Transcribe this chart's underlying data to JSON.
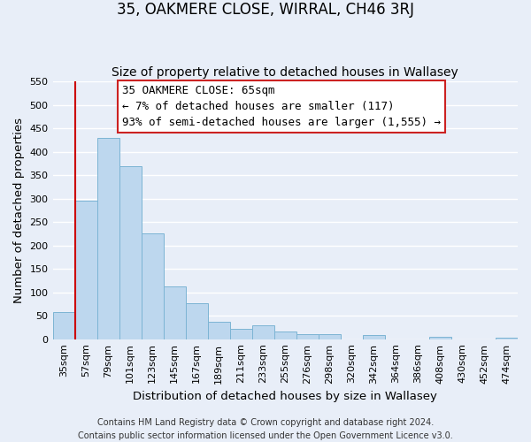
{
  "title": "35, OAKMERE CLOSE, WIRRAL, CH46 3RJ",
  "subtitle": "Size of property relative to detached houses in Wallasey",
  "xlabel": "Distribution of detached houses by size in Wallasey",
  "ylabel": "Number of detached properties",
  "bar_labels": [
    "35sqm",
    "57sqm",
    "79sqm",
    "101sqm",
    "123sqm",
    "145sqm",
    "167sqm",
    "189sqm",
    "211sqm",
    "233sqm",
    "255sqm",
    "276sqm",
    "298sqm",
    "320sqm",
    "342sqm",
    "364sqm",
    "386sqm",
    "408sqm",
    "430sqm",
    "452sqm",
    "474sqm"
  ],
  "bar_values": [
    57,
    296,
    430,
    369,
    225,
    113,
    76,
    38,
    22,
    29,
    17,
    10,
    10,
    0,
    9,
    0,
    0,
    5,
    0,
    0,
    4
  ],
  "bar_color": "#bdd7ee",
  "bar_edge_color": "#7cb4d4",
  "vline_color": "#cc0000",
  "ylim": [
    0,
    550
  ],
  "yticks": [
    0,
    50,
    100,
    150,
    200,
    250,
    300,
    350,
    400,
    450,
    500,
    550
  ],
  "annotation_title": "35 OAKMERE CLOSE: 65sqm",
  "annotation_line1": "← 7% of detached houses are smaller (117)",
  "annotation_line2": "93% of semi-detached houses are larger (1,555) →",
  "footer_line1": "Contains HM Land Registry data © Crown copyright and database right 2024.",
  "footer_line2": "Contains public sector information licensed under the Open Government Licence v3.0.",
  "background_color": "#e8eef8",
  "grid_color": "#ffffff",
  "title_fontsize": 12,
  "subtitle_fontsize": 10,
  "axis_label_fontsize": 9.5,
  "tick_fontsize": 8,
  "annotation_fontsize": 9,
  "footer_fontsize": 7
}
